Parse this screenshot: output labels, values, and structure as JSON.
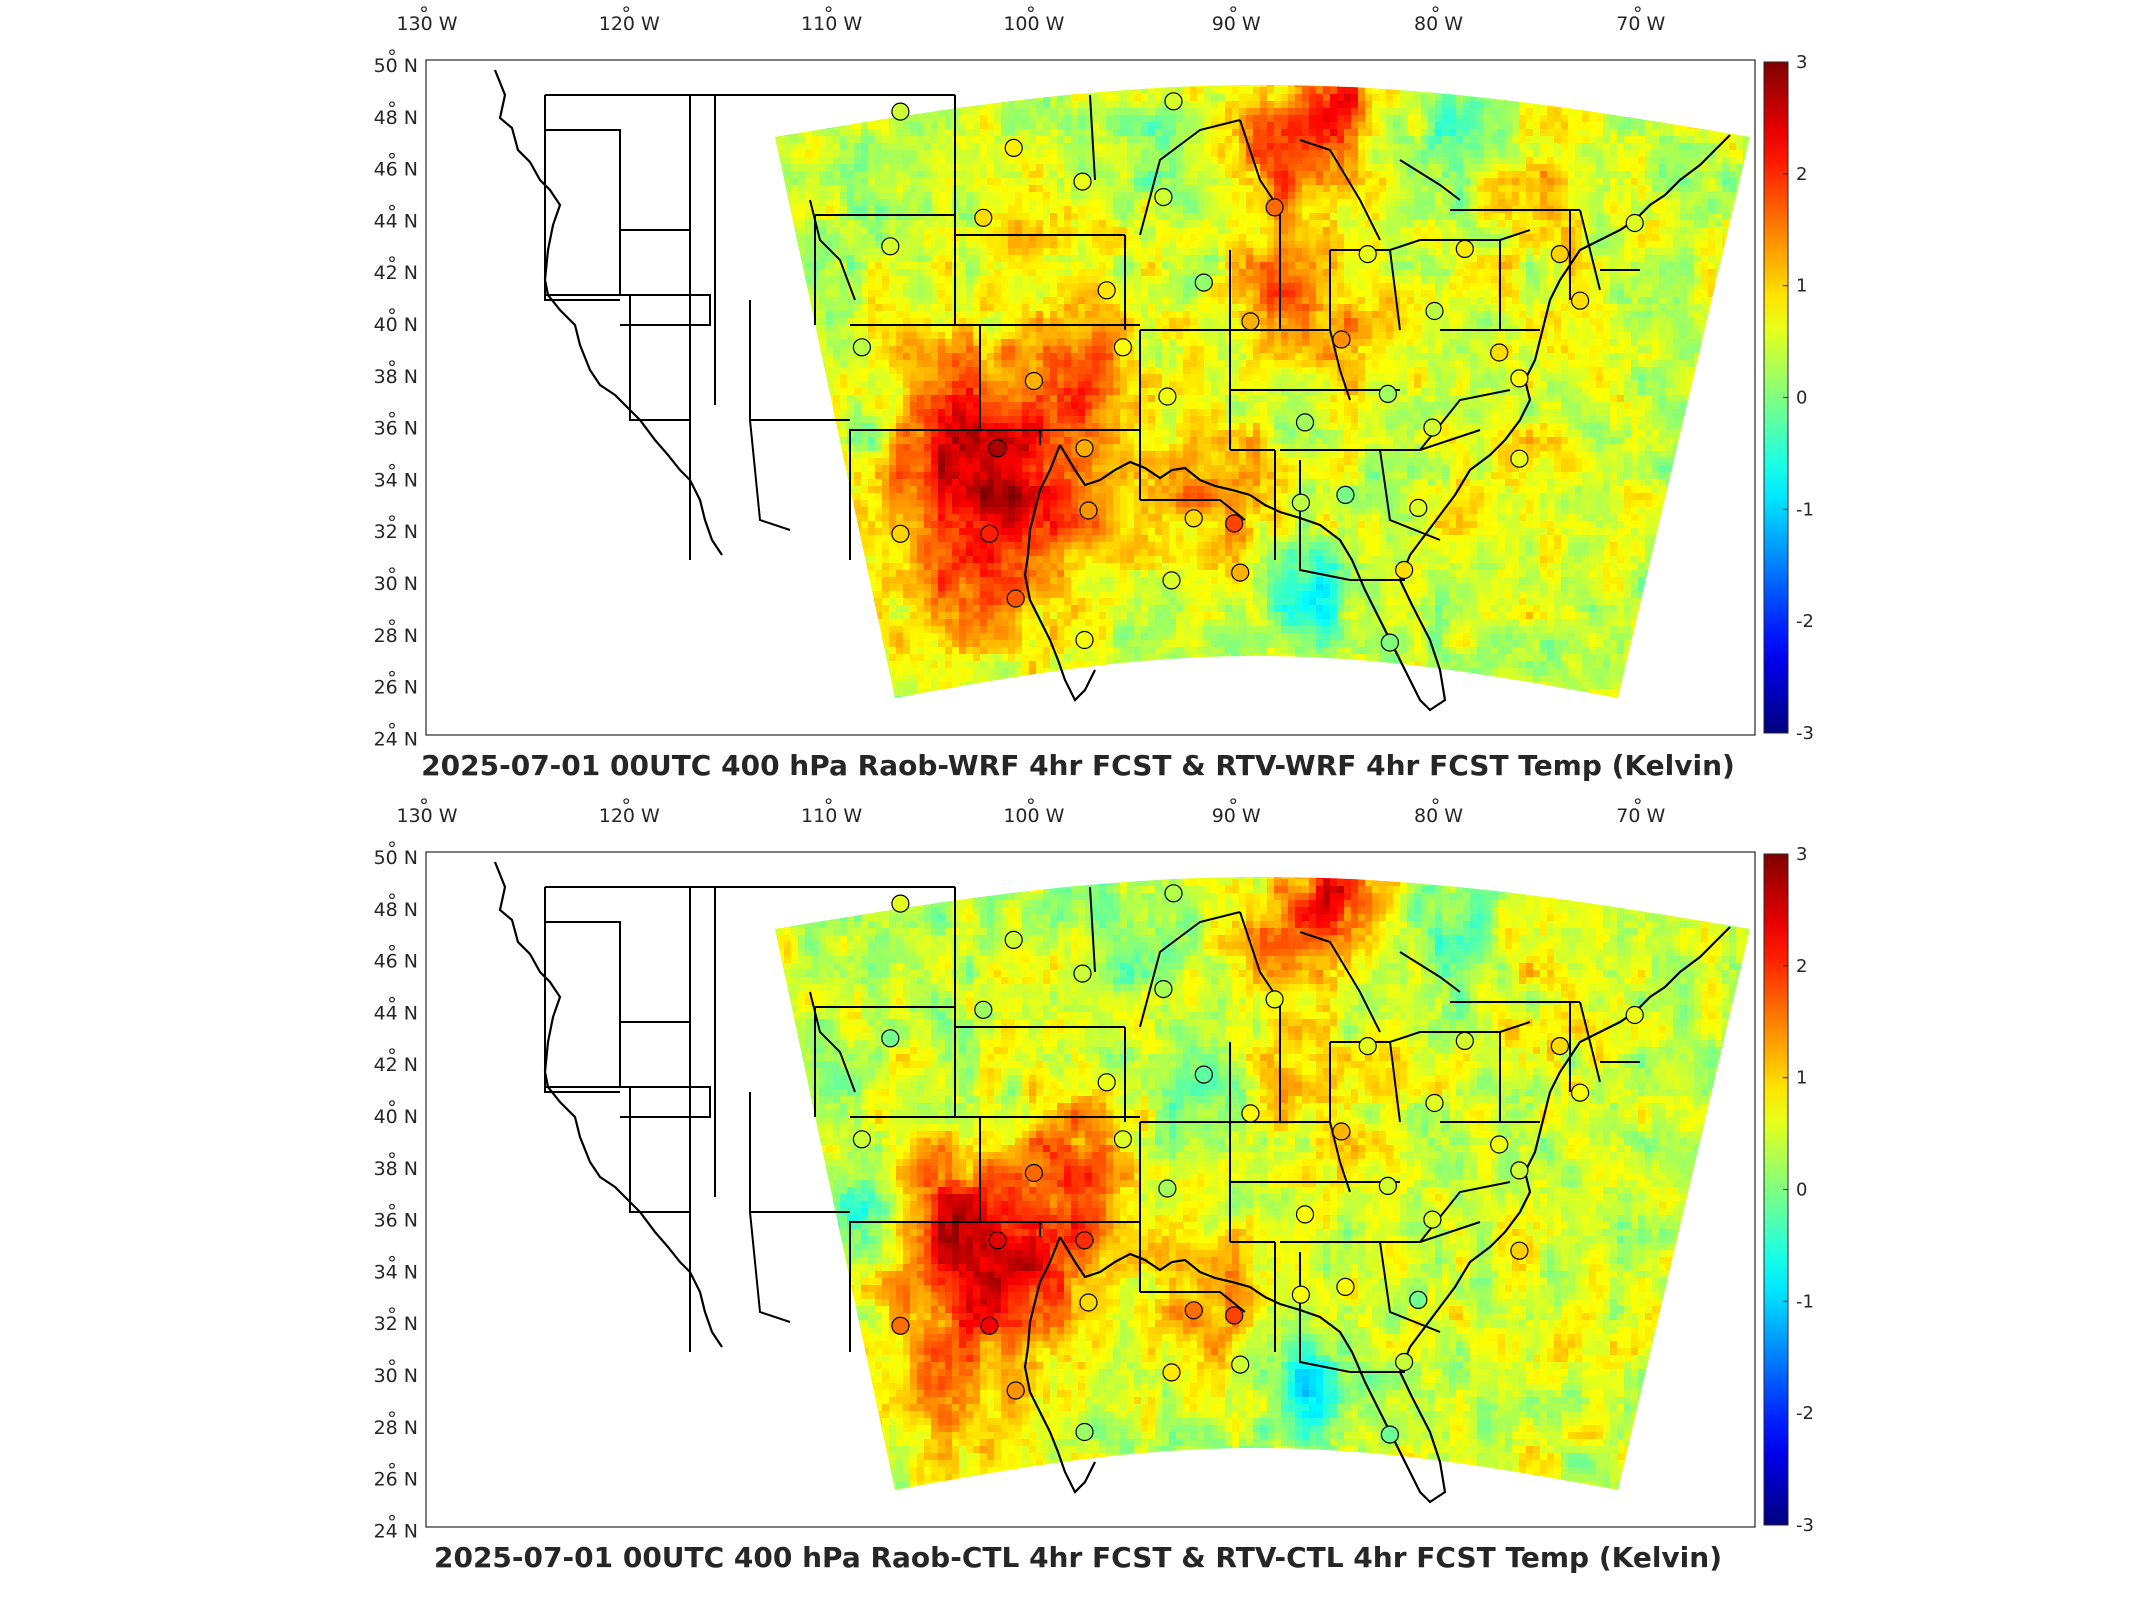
{
  "panels": [
    {
      "title": "2025-07-01 00UTC 400 hPa Raob-WRF 4hr FCST & RTV-WRF 4hr FCST Temp (Kelvin)",
      "field_pattern": "wrf"
    },
    {
      "title": "2025-07-01 00UTC 400 hPa Raob-CTL 4hr FCST & RTV-CTL 4hr FCST Temp (Kelvin)",
      "field_pattern": "ctl"
    }
  ],
  "map": {
    "lon_ticks": [
      "130",
      "120",
      "110",
      "100",
      "90",
      "80",
      "70"
    ],
    "lon_suffix": "W",
    "lat_ticks": [
      "50",
      "48",
      "46",
      "44",
      "42",
      "40",
      "38",
      "36",
      "34",
      "32",
      "30",
      "28",
      "26",
      "24"
    ],
    "lat_suffix": "N",
    "degree_symbol": "°"
  },
  "colorbar": {
    "ticks": [
      "3",
      "2",
      "1",
      "0",
      "-1",
      "-2",
      "-3"
    ],
    "colormap": "jet",
    "colors": [
      "#00008f",
      "#0000ff",
      "#00ffff",
      "#ffff00",
      "#ff0000",
      "#800000"
    ]
  },
  "stations": [
    {
      "lon": -106.6,
      "lat": 48.2
    },
    {
      "lon": -101.0,
      "lat": 46.8
    },
    {
      "lon": -97.6,
      "lat": 45.5
    },
    {
      "lon": -93.6,
      "lat": 44.9
    },
    {
      "lon": -93.1,
      "lat": 48.6
    },
    {
      "lon": -102.5,
      "lat": 44.1
    },
    {
      "lon": -107.1,
      "lat": 43.0
    },
    {
      "lon": -96.4,
      "lat": 41.3
    },
    {
      "lon": -91.6,
      "lat": 41.6
    },
    {
      "lon": -88.1,
      "lat": 44.5
    },
    {
      "lon": -83.5,
      "lat": 42.7
    },
    {
      "lon": -78.7,
      "lat": 42.9
    },
    {
      "lon": -74.0,
      "lat": 42.7
    },
    {
      "lon": -70.3,
      "lat": 43.9
    },
    {
      "lon": -73.0,
      "lat": 40.9
    },
    {
      "lon": -108.5,
      "lat": 39.1
    },
    {
      "lon": -100.0,
      "lat": 37.8
    },
    {
      "lon": -95.6,
      "lat": 39.1
    },
    {
      "lon": -93.4,
      "lat": 37.2
    },
    {
      "lon": -89.3,
      "lat": 40.1
    },
    {
      "lon": -84.8,
      "lat": 39.4
    },
    {
      "lon": -80.2,
      "lat": 40.5
    },
    {
      "lon": -77.0,
      "lat": 38.9
    },
    {
      "lon": -76.0,
      "lat": 37.9
    },
    {
      "lon": -82.5,
      "lat": 37.3
    },
    {
      "lon": -86.6,
      "lat": 36.2
    },
    {
      "lon": -80.3,
      "lat": 36.0
    },
    {
      "lon": -76.0,
      "lat": 34.8
    },
    {
      "lon": -101.8,
      "lat": 35.2
    },
    {
      "lon": -97.5,
      "lat": 35.2
    },
    {
      "lon": -97.3,
      "lat": 32.8
    },
    {
      "lon": -92.1,
      "lat": 32.5
    },
    {
      "lon": -90.1,
      "lat": 32.3
    },
    {
      "lon": -86.8,
      "lat": 33.1
    },
    {
      "lon": -84.6,
      "lat": 33.4
    },
    {
      "lon": -81.0,
      "lat": 32.9
    },
    {
      "lon": -106.6,
      "lat": 31.9
    },
    {
      "lon": -102.2,
      "lat": 31.9
    },
    {
      "lon": -100.9,
      "lat": 29.4
    },
    {
      "lon": -97.5,
      "lat": 27.8
    },
    {
      "lon": -93.2,
      "lat": 30.1
    },
    {
      "lon": -89.8,
      "lat": 30.4
    },
    {
      "lon": -81.7,
      "lat": 30.5
    },
    {
      "lon": -82.4,
      "lat": 27.7
    }
  ]
}
